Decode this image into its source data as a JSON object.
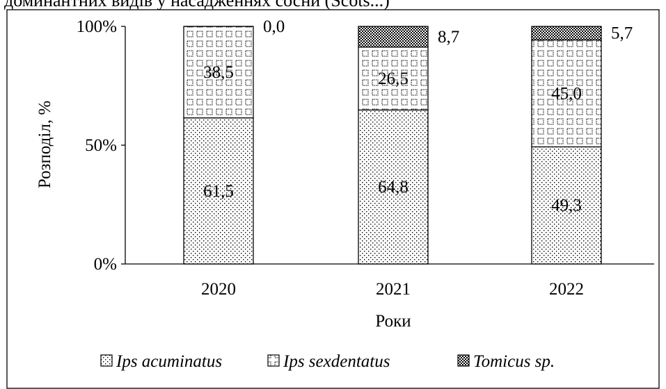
{
  "header_fragment": "доминантних видів у насадженнях сосни (Scots...)",
  "chart_data": {
    "type": "bar",
    "stacked": true,
    "percent": true,
    "categories": [
      "2020",
      "2021",
      "2022"
    ],
    "series": [
      {
        "name": "Ips acuminatus",
        "values": [
          61.5,
          64.8,
          49.3
        ],
        "labels": [
          "61,5",
          "64,8",
          "49,3"
        ],
        "pattern": "dots"
      },
      {
        "name": "Ips sexdentatus",
        "values": [
          38.5,
          26.5,
          45.0
        ],
        "labels": [
          "38,5",
          "26,5",
          "45,0"
        ],
        "pattern": "squares"
      },
      {
        "name": "Tomicus sp.",
        "values": [
          0.0,
          8.7,
          5.7
        ],
        "labels": [
          "0,0",
          "8,7",
          "5,7"
        ],
        "pattern": "dense"
      }
    ],
    "ylabel": "Розподіл, %",
    "xlabel": "Роки",
    "ylim": [
      0,
      100
    ],
    "yticks": [
      0,
      50,
      100
    ],
    "ytick_labels": [
      "0%",
      "50%",
      "100%"
    ],
    "legend_position": "bottom",
    "grid": false
  }
}
